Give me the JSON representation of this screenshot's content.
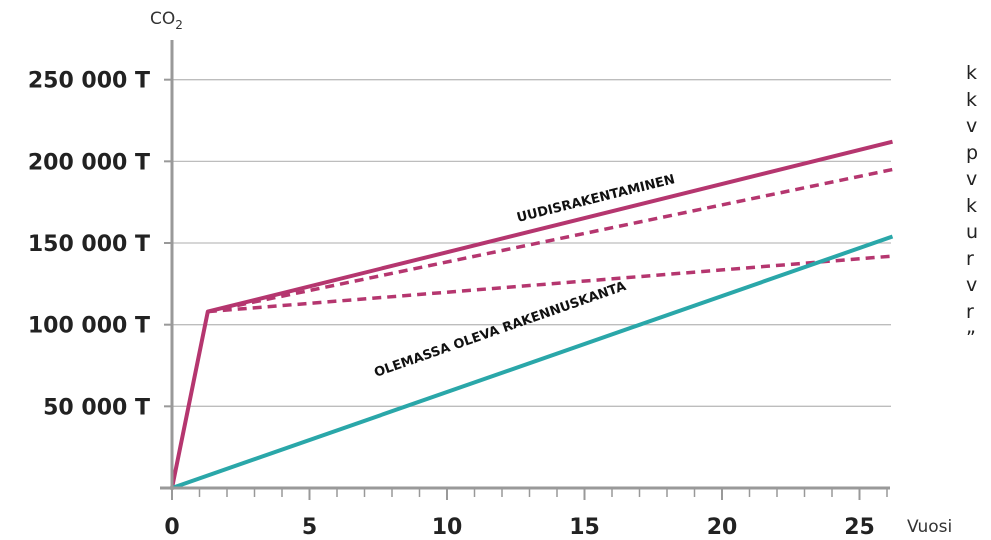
{
  "chart_data": {
    "type": "line",
    "ylabel": "CO2",
    "xlabel": "Vuosi",
    "xlim": [
      0,
      26
    ],
    "ylim": [
      0,
      250000
    ],
    "x_ticks": [
      0,
      5,
      10,
      15,
      20,
      25
    ],
    "x_tick_labels": [
      "0",
      "5",
      "10",
      "15",
      "20",
      "25"
    ],
    "y_ticks": [
      50000,
      100000,
      150000,
      200000,
      250000
    ],
    "y_tick_labels": [
      "50 000 T",
      "100 000 T",
      "150 000 T",
      "200 000 T",
      "250 000 T"
    ],
    "grid": true,
    "colors": {
      "uudisrakentaminen": "#b5366f",
      "olemassa_oleva": "#2aa7a9"
    },
    "series": [
      {
        "name": "UUDISRAKENTAMINEN",
        "style": "solid",
        "color": "#b5366f",
        "x": [
          0,
          1.3,
          26.2
        ],
        "y": [
          0,
          108000,
          212000
        ]
      },
      {
        "style": "dashed",
        "color": "#b5366f",
        "x": [
          1.3,
          26.2
        ],
        "y": [
          108000,
          195000
        ]
      },
      {
        "style": "dashed",
        "color": "#b5366f",
        "x": [
          1.3,
          26.2
        ],
        "y": [
          108000,
          142000
        ]
      },
      {
        "name": "OLEMASSA OLEVA RAKENNUSKANTA",
        "style": "solid",
        "color": "#2aa7a9",
        "x": [
          0,
          26.2
        ],
        "y": [
          0,
          154000
        ]
      }
    ]
  },
  "side_text_lines": [
    "k",
    "k",
    "v",
    "p",
    "v",
    "k",
    "u",
    "r",
    "v",
    "r",
    "”"
  ]
}
